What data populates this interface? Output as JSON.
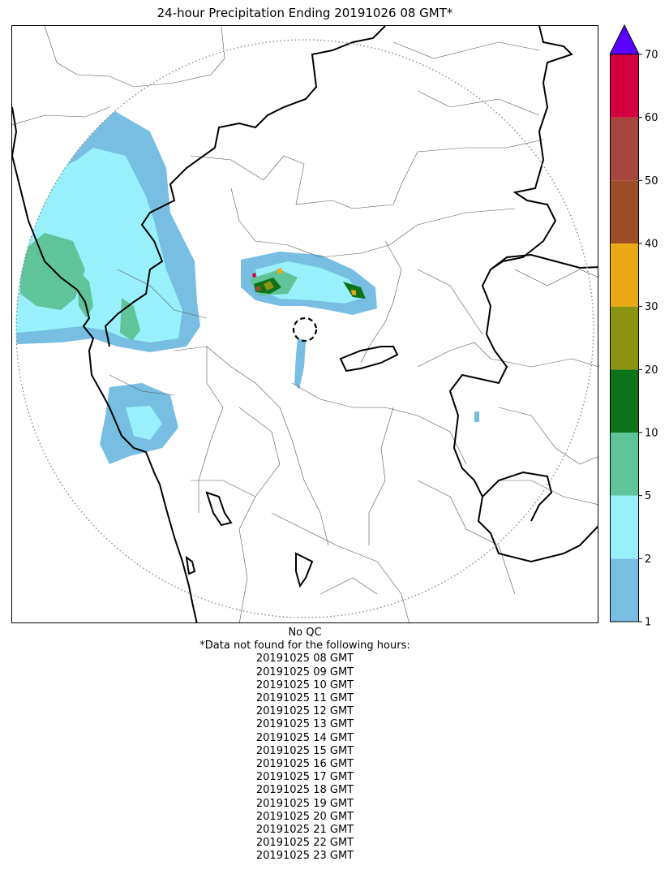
{
  "title": "24-hour Precipitation Ending 20191026 08 GMT*",
  "qc_label": "No QC",
  "missing_header": "*Data not found for the following hours:",
  "missing_hours": [
    "20191025 08 GMT",
    "20191025 09 GMT",
    "20191025 10 GMT",
    "20191025 11 GMT",
    "20191025 12 GMT",
    "20191025 13 GMT",
    "20191025 14 GMT",
    "20191025 15 GMT",
    "20191025 16 GMT",
    "20191025 17 GMT",
    "20191025 18 GMT",
    "20191025 19 GMT",
    "20191025 20 GMT",
    "20191025 21 GMT",
    "20191025 22 GMT",
    "20191025 23 GMT"
  ],
  "colorbar": {
    "levels": [
      1,
      2,
      5,
      10,
      20,
      30,
      40,
      50,
      60,
      70
    ],
    "tick_labels": [
      "1",
      "2",
      "5",
      "10",
      "20",
      "30",
      "40",
      "50",
      "60",
      "70"
    ],
    "colors": [
      "#78bee3",
      "#97f0fb",
      "#5fc49a",
      "#0e7218",
      "#8c9313",
      "#e9aa16",
      "#9b4e28",
      "#a6463d",
      "#d5003f"
    ],
    "extend_color": "#5a00ff",
    "extend": "max"
  },
  "legend_colors": {
    "border": "#000000",
    "district_lines": "#555555",
    "range_ring": "#888888"
  }
}
